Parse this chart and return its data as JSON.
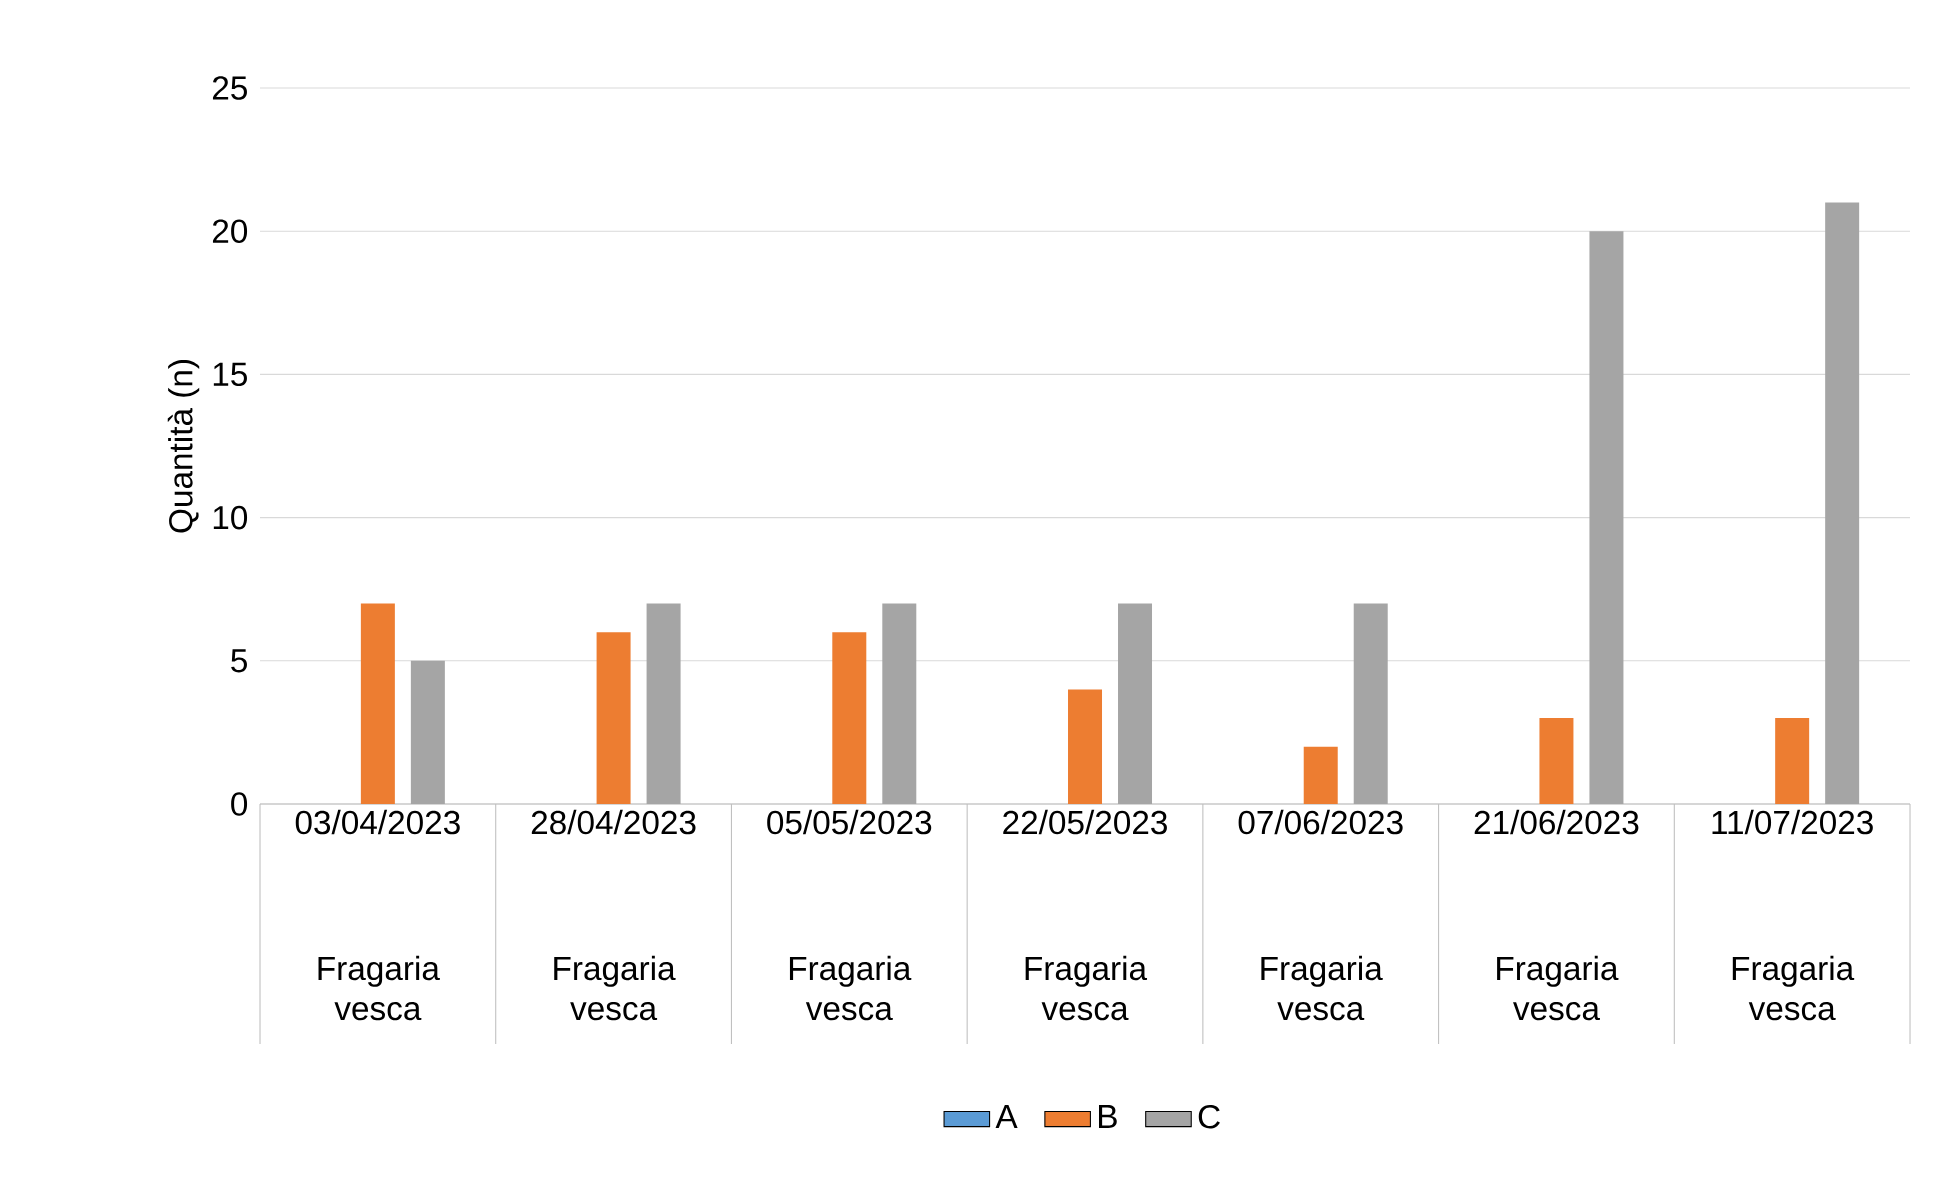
{
  "chart_data": {
    "type": "bar",
    "categories": [
      "03/04/2023",
      "28/04/2023",
      "05/05/2023",
      "22/05/2023",
      "07/06/2023",
      "21/06/2023",
      "11/07/2023"
    ],
    "series": [
      {
        "name": "A",
        "color": "#5b9bd5",
        "values": [
          0,
          0,
          0,
          0,
          0,
          0,
          0
        ]
      },
      {
        "name": "B",
        "color": "#ed7d31",
        "values": [
          7,
          6,
          6,
          4,
          2,
          3,
          3
        ]
      },
      {
        "name": "C",
        "color": "#a5a5a5",
        "values": [
          5,
          7,
          7,
          7,
          7,
          20,
          21
        ]
      }
    ],
    "ylabel": "Quantità (n)",
    "ylim": [
      0,
      25
    ],
    "yticks": [
      0,
      5,
      10,
      15,
      20,
      25
    ],
    "grid": "y",
    "legend": "bottom",
    "annotations": [
      "Fragaria vesca",
      "Fragaria vesca",
      "Fragaria vesca",
      "Fragaria vesca",
      "Fragaria vesca",
      "Fragaria vesca",
      "Fragaria vesca"
    ]
  }
}
